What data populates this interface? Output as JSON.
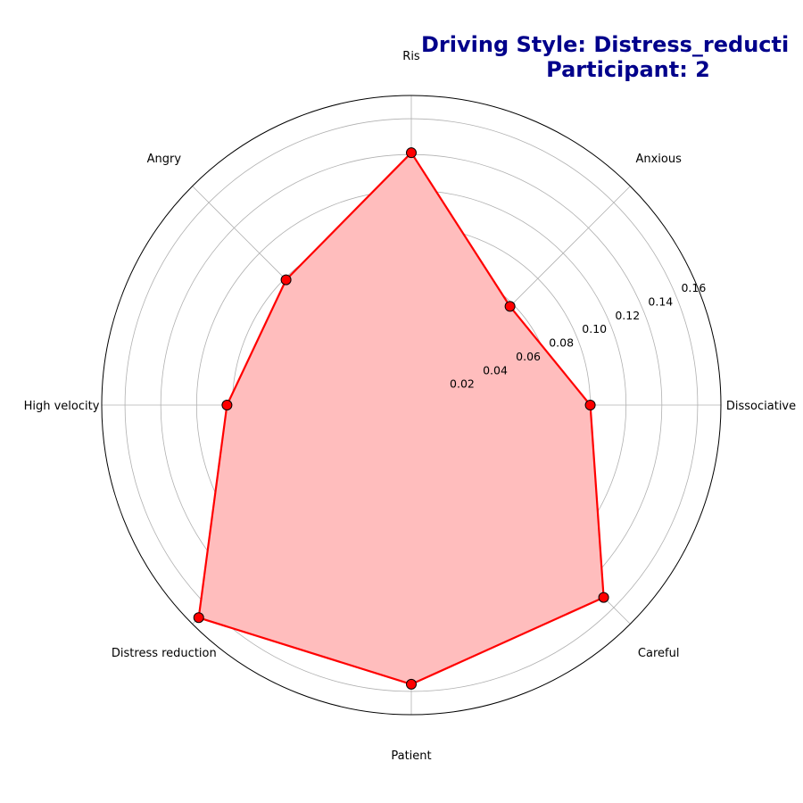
{
  "chart_data": {
    "type": "radar",
    "title_lines": [
      "Driving Style: Distress_reducti",
      "Participant: 2"
    ],
    "categories": [
      "Risky",
      "Anxious",
      "Dissociative",
      "Careful",
      "Patient",
      "Distress reduction",
      "High velocity",
      "Angry"
    ],
    "category_display": [
      "Ris",
      "Anxious",
      "Dissociative",
      "Careful",
      "Patient",
      "Distress reduction",
      "High velocity",
      "Angry"
    ],
    "series": [
      {
        "values": [
          0.141,
          0.078,
          0.1,
          0.152,
          0.156,
          0.168,
          0.103,
          0.099
        ]
      }
    ],
    "r_ticks": [
      0.02,
      0.04,
      0.06,
      0.08,
      0.1,
      0.12,
      0.14,
      0.16
    ],
    "r_tick_labels": [
      "0.02",
      "0.04",
      "0.06",
      "0.08",
      "0.10",
      "0.12",
      "0.14",
      "0.16"
    ],
    "rlim": [
      0.0,
      0.173
    ],
    "grid": true,
    "colors": {
      "line": "#ff0000",
      "fill": "#ffbdbd",
      "marker_edge": "#000000",
      "title": "#00008b",
      "grid": "#b0b0b0"
    }
  }
}
